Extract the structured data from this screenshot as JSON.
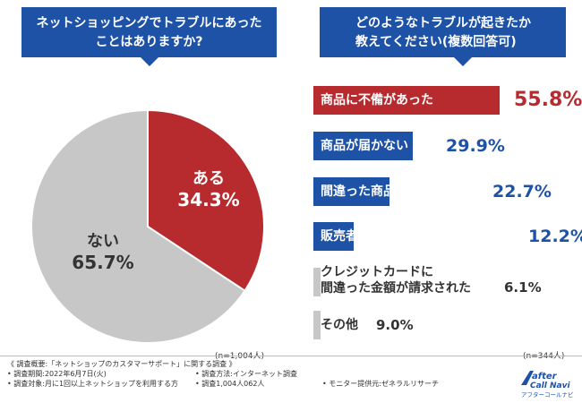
{
  "left_question": "ネットショッピングでトラブルにあったことはありますか?",
  "right_question_line1": "どのようなトラブルが起きたか",
  "right_question_line2": "教えてください(複数回答可)",
  "colors": {
    "blue": "#1d52a6",
    "red": "#b72b2f",
    "gray": "#c7c7c7"
  },
  "chart_data": [
    {
      "type": "pie",
      "slices": [
        {
          "label": "ある",
          "value": 34.3,
          "display": "34.3%",
          "color": "#b72b2f"
        },
        {
          "label": "ない",
          "value": 65.7,
          "display": "65.7%",
          "color": "#c7c7c7"
        }
      ],
      "note": "(n=1,004人)"
    },
    {
      "type": "bar",
      "categories": [
        "商品に不備があった",
        "商品が届かない",
        "間違った商品が届いた",
        "販売者と連絡が取れない",
        "クレジットカードに間違った金額が請求された",
        "その他"
      ],
      "values": [
        55.8,
        29.9,
        22.7,
        12.2,
        6.1,
        9.0
      ],
      "display": [
        "55.8%",
        "29.9%",
        "22.7%",
        "12.2%",
        "6.1%",
        "9.0%"
      ],
      "note": "(n=344人)"
    }
  ],
  "footer": {
    "line1": "《 調査概要:「ネットショップのカスタマーサポート」に関する調査 》",
    "period": "• 調査期間:2022年6月7日(火)",
    "method": "• 調査方法:インターネット調査",
    "target": "• 調査対象:月に1回以上ネットショップを利用する方",
    "count": "• 調査1,004人062人",
    "provider": "• モニター提供元:ゼネラルリサーチ"
  },
  "logo": {
    "line1": "after",
    "line2": "Call Navi",
    "caption": "アフターコールナビ"
  }
}
